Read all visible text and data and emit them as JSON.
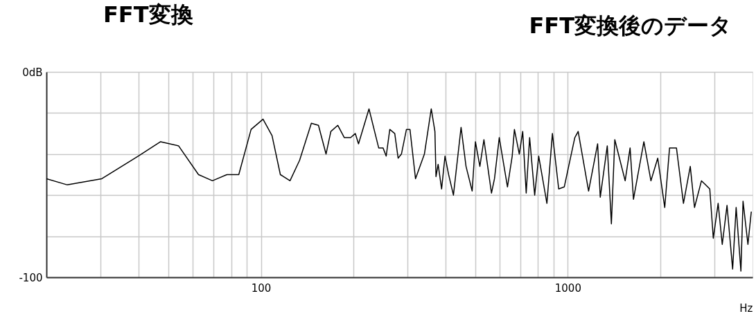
{
  "chart_data": {
    "type": "line",
    "title": "FFT変換後のデータ",
    "xlabel": "Hz",
    "annotations": [
      "FFT変換"
    ],
    "log": "x",
    "grid": true,
    "marker": "none",
    "line_style": "solid",
    "xlim": [
      20,
      4000
    ],
    "ylim": [
      -100,
      0
    ],
    "xticks": [
      {
        "value": 30,
        "label": null
      },
      {
        "value": 40,
        "label": null
      },
      {
        "value": 50,
        "label": null
      },
      {
        "value": 60,
        "label": null
      },
      {
        "value": 70,
        "label": null
      },
      {
        "value": 80,
        "label": null
      },
      {
        "value": 90,
        "label": null
      },
      100,
      {
        "value": 200,
        "label": null
      },
      {
        "value": 300,
        "label": null
      },
      {
        "value": 400,
        "label": null
      },
      {
        "value": 500,
        "label": null
      },
      {
        "value": 600,
        "label": null
      },
      {
        "value": 700,
        "label": null
      },
      {
        "value": 800,
        "label": null
      },
      {
        "value": 900,
        "label": null
      },
      1000,
      {
        "value": 2000,
        "label": null
      },
      {
        "value": 3000,
        "label": null
      }
    ],
    "yticks": [
      {
        "value": -100,
        "label": "-100"
      },
      {
        "value": -80,
        "label": null
      },
      {
        "value": -60,
        "label": null
      },
      {
        "value": -40,
        "label": null
      },
      {
        "value": -20,
        "label": null
      },
      {
        "value": 0,
        "label": "0dB"
      }
    ],
    "series": [
      {
        "color": "#000000",
        "x": [
          20,
          23.4,
          30.3,
          39.8,
          47.1,
          53.9,
          62.6,
          69.5,
          77.5,
          84.7,
          92.9,
          101.6,
          108.7,
          115.7,
          124.4,
          133.7,
          146,
          154,
          163,
          169,
          178,
          187,
          196,
          203,
          208,
          225,
          242,
          250,
          256,
          263,
          273,
          280,
          287,
          298,
          306,
          319,
          341,
          359,
          369,
          372,
          378,
          388,
          398,
          409,
          424,
          449,
          466,
          488,
          500,
          517,
          533,
          564,
          577,
          598,
          636,
          659,
          670,
          695,
          713,
          732,
          751,
          780,
          804,
          855,
          891,
          934,
          974,
          1054,
          1081,
          1169,
          1251,
          1276,
          1345,
          1387,
          1423,
          1538,
          1596,
          1637,
          1770,
          1866,
          1964,
          2070,
          2146,
          2260,
          2382,
          2507,
          2588,
          2727,
          2902,
          2980,
          3090,
          3187,
          3303,
          3445,
          3537,
          3666,
          3725,
          3864,
          3963
        ],
        "values": [
          -52,
          -55,
          -52,
          -41,
          -34,
          -36,
          -50,
          -53,
          -50,
          -50,
          -28,
          -23,
          -31,
          -50,
          -53,
          -43,
          -25,
          -26,
          -40,
          -29,
          -26,
          -32,
          -32,
          -30,
          -35,
          -18,
          -37,
          -37,
          -41,
          -28,
          -30,
          -42,
          -40,
          -28,
          -28,
          -52,
          -40,
          -18,
          -29,
          -51,
          -45,
          -57,
          -41,
          -50,
          -60,
          -27,
          -46,
          -58,
          -34,
          -46,
          -33,
          -59,
          -52,
          -32,
          -56,
          -41,
          -28,
          -40,
          -29,
          -59,
          -32,
          -60,
          -41,
          -64,
          -30,
          -57,
          -56,
          -32,
          -29,
          -58,
          -35,
          -61,
          -36,
          -74,
          -33,
          -53,
          -37,
          -62,
          -34,
          -53,
          -42,
          -66,
          -37,
          -37,
          -64,
          -46,
          -66,
          -53,
          -57,
          -81,
          -64,
          -84,
          -65,
          -96,
          -66,
          -97,
          -63,
          -84,
          -68
        ]
      }
    ]
  }
}
